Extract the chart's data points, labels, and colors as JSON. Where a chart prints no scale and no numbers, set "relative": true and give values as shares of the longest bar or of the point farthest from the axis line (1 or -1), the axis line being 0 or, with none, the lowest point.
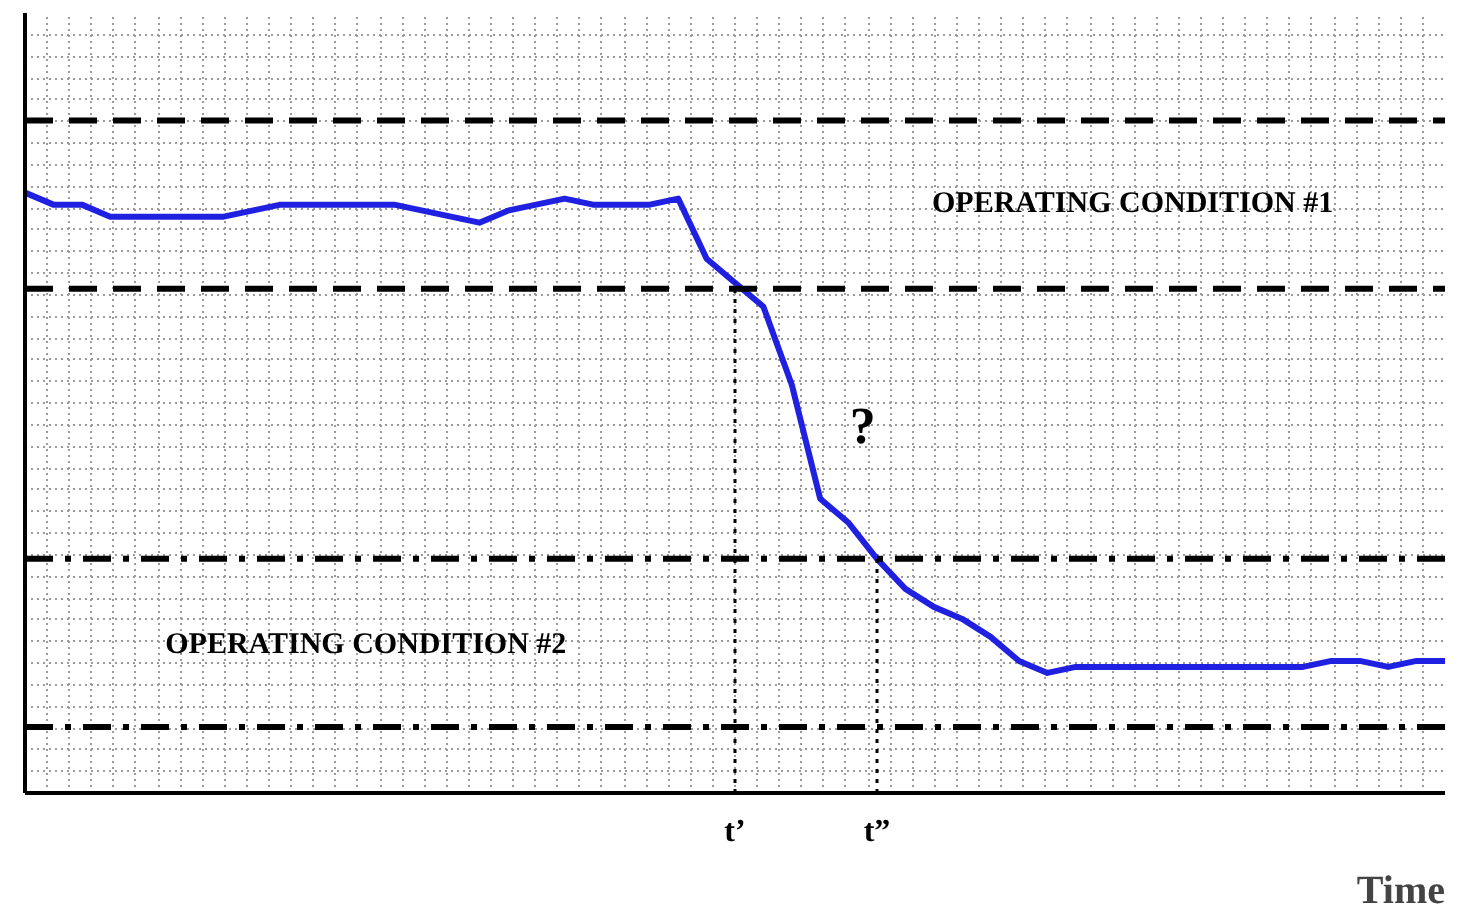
{
  "chart_data": {
    "type": "line",
    "relative": true,
    "xlabel": "Time",
    "categories": [
      null,
      null,
      null,
      null,
      null,
      null,
      null,
      null,
      null,
      null,
      null,
      null,
      null,
      null,
      null,
      null,
      null,
      null,
      null,
      null,
      null,
      null,
      null,
      null,
      null,
      "t’",
      null,
      null,
      null,
      null,
      "t”",
      null,
      null,
      null,
      null,
      null,
      null,
      null,
      null,
      null,
      null,
      null,
      null,
      null,
      null,
      null,
      null,
      null,
      null,
      null,
      null
    ],
    "series": [
      {
        "color": "#2020e0",
        "values": [
          1.0,
          0.98,
          0.98,
          0.96,
          0.96,
          0.96,
          0.96,
          0.96,
          0.97,
          0.98,
          0.98,
          0.98,
          0.98,
          0.98,
          0.97,
          0.96,
          0.95,
          0.97,
          0.98,
          0.99,
          0.98,
          0.98,
          0.98,
          0.99,
          0.89,
          0.85,
          0.81,
          0.68,
          0.49,
          0.45,
          0.39,
          0.34,
          0.31,
          0.29,
          0.26,
          0.22,
          0.2,
          0.21,
          0.21,
          0.21,
          0.21,
          0.21,
          0.21,
          0.21,
          0.21,
          0.21,
          0.22,
          0.22,
          0.21,
          0.22,
          0.22
        ]
      }
    ],
    "ref_lines": [
      {
        "axis": "y",
        "value": 1.12,
        "color": "#000000",
        "line_style": "dashed"
      },
      {
        "axis": "y",
        "value": 0.84,
        "color": "#000000",
        "line_style": "dashed"
      },
      {
        "axis": "y",
        "value": 0.39,
        "color": "#000000",
        "line_style": "dashdot"
      },
      {
        "axis": "y",
        "value": 0.11,
        "color": "#000000",
        "line_style": "dashdot"
      },
      {
        "axis": "x",
        "value": "t’",
        "color": "#000000",
        "line_style": "dotted"
      },
      {
        "axis": "x",
        "value": "t”",
        "color": "#000000",
        "line_style": "dotted"
      }
    ],
    "annotations": [
      "OPERATING CONDITION #1",
      "OPERATING CONDITION #2",
      "?"
    ],
    "grid": true,
    "line_style": "solid"
  }
}
